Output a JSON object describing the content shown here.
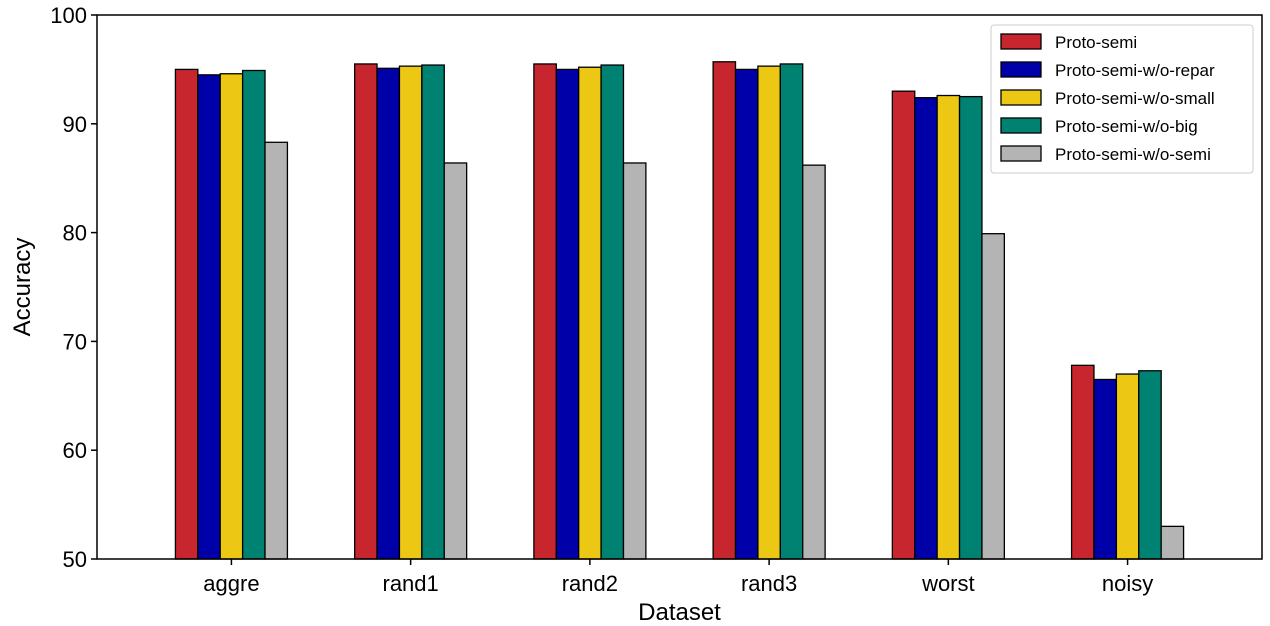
{
  "chart_data": {
    "type": "bar",
    "title": "",
    "xlabel": "Dataset",
    "ylabel": "Accuracy",
    "ylim": [
      50,
      100
    ],
    "yticks": [
      50,
      60,
      70,
      80,
      90,
      100
    ],
    "grid": false,
    "legend_position": "top-right",
    "categories": [
      "aggre",
      "rand1",
      "rand2",
      "rand3",
      "worst",
      "noisy"
    ],
    "series": [
      {
        "name": "Proto-semi",
        "color": "#c8262e",
        "values": [
          95.0,
          95.5,
          95.5,
          95.7,
          93.0,
          67.8
        ]
      },
      {
        "name": "Proto-semi-w/o-repar",
        "color": "#0000a8",
        "values": [
          94.5,
          95.1,
          95.0,
          95.0,
          92.4,
          66.5
        ]
      },
      {
        "name": "Proto-semi-w/o-small",
        "color": "#ecc815",
        "values": [
          94.6,
          95.3,
          95.2,
          95.3,
          92.6,
          67.0
        ]
      },
      {
        "name": "Proto-semi-w/o-big",
        "color": "#008272",
        "values": [
          94.9,
          95.4,
          95.4,
          95.5,
          92.5,
          67.3
        ]
      },
      {
        "name": "Proto-semi-w/o-semi",
        "color": "#b4b4b4",
        "values": [
          88.3,
          86.4,
          86.4,
          86.2,
          79.9,
          53.0
        ]
      }
    ]
  }
}
